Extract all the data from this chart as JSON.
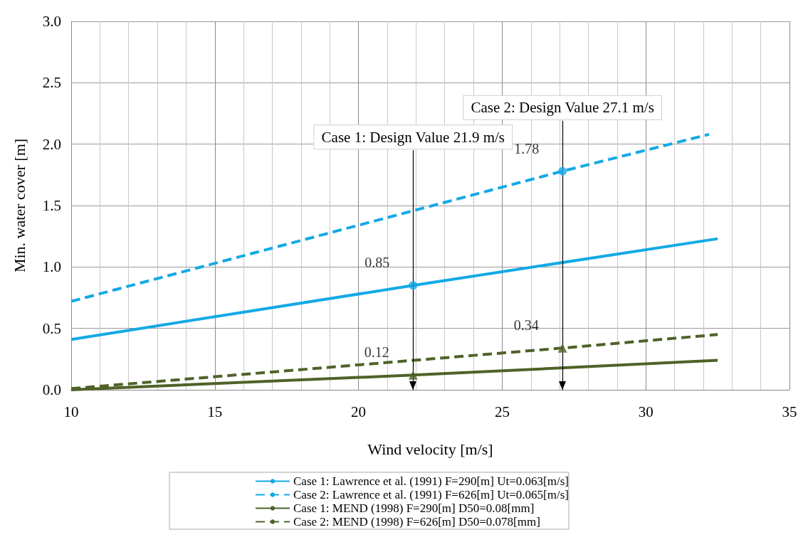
{
  "chart_data": {
    "type": "line",
    "xlabel": "Wind velocity [m/s]",
    "ylabel": "Min. water cover [m]",
    "xlim": [
      10,
      35
    ],
    "xticks": [
      10,
      15,
      20,
      25,
      30,
      35
    ],
    "ylim": [
      0,
      3
    ],
    "yticks": [
      {
        "value": 0,
        "label": "0.0"
      },
      0.5,
      {
        "value": 1,
        "label": "1.0"
      },
      1.5,
      {
        "value": 2,
        "label": "2.0"
      },
      2.5,
      {
        "value": 3,
        "label": "3.0"
      }
    ],
    "grid": true,
    "legend": "bottom",
    "series": [
      {
        "name": "Case 1: Lawrence et al. (1991) F=290[m] Ut=0.063[m/s]",
        "color": "#13a9e6",
        "line_style": "solid",
        "x": [
          10,
          21.9,
          32.5
        ],
        "values": [
          0.41,
          0.85,
          1.23
        ]
      },
      {
        "name": "Case 2: Lawrence et al. (1991) F=626[m] Ut=0.065[m/s]",
        "color": "#13a9e6",
        "line_style": "dashed",
        "x": [
          10,
          27.1,
          32.2
        ],
        "values": [
          0.72,
          1.78,
          2.08
        ]
      },
      {
        "name": "Case 1: MEND (1998) F=290[m] D50=0.08[mm]",
        "color": "#4f6228",
        "line_style": "solid",
        "x": [
          10,
          21.9,
          32.5
        ],
        "values": [
          0.0,
          0.12,
          0.24
        ]
      },
      {
        "name": "Case 2: MEND (1998) F=626[m] D50=0.078[mm]",
        "color": "#4f6228",
        "line_style": "dashed",
        "x": [
          10,
          27.1,
          32.5
        ],
        "values": [
          0.01,
          0.34,
          0.45
        ]
      },
      {
        "type": "scatter",
        "color": "#13a9e6",
        "marker": "circle",
        "x": [
          21.9
        ],
        "values": [
          0.85
        ],
        "value_labels": [
          "0.85"
        ]
      },
      {
        "type": "scatter",
        "color": "#13a9e6",
        "marker": "circle",
        "x": [
          27.1
        ],
        "values": [
          1.78
        ],
        "value_labels": [
          "1.78"
        ]
      },
      {
        "type": "scatter",
        "color": "#4f6228",
        "marker": "triangle",
        "x": [
          21.9
        ],
        "values": [
          0.12
        ],
        "value_labels": [
          "0.12"
        ]
      },
      {
        "type": "scatter",
        "color": "#4f6228",
        "marker": "triangle",
        "x": [
          27.1
        ],
        "values": [
          0.34
        ],
        "value_labels": [
          "0.34"
        ]
      }
    ],
    "ref_lines": [
      {
        "axis": "x",
        "value": 21.9,
        "label": "Case 1: Design Value 21.9 m/s",
        "color": "#000000"
      },
      {
        "axis": "x",
        "value": 27.1,
        "label": "Case 2: Design Value 27.1 m/s",
        "color": "#000000"
      }
    ]
  }
}
